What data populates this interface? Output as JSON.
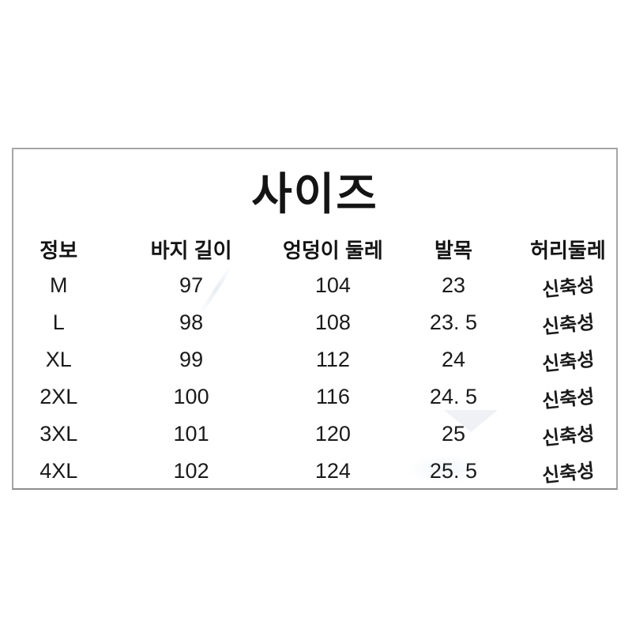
{
  "title": "사이즈",
  "table": {
    "headers": [
      "정보",
      "바지 길이",
      "엉덩이 둘레",
      "발목",
      "허리둘레"
    ],
    "rows": [
      [
        "M",
        "97",
        "104",
        "23",
        "신축성"
      ],
      [
        "L",
        "98",
        "108",
        "23. 5",
        "신축성"
      ],
      [
        "XL",
        "99",
        "112",
        "24",
        "신축성"
      ],
      [
        "2XL",
        "100",
        "116",
        "24. 5",
        "신축성"
      ],
      [
        "3XL",
        "101",
        "120",
        "25",
        "신축성"
      ],
      [
        "4XL",
        "102",
        "124",
        "25. 5",
        "신축성"
      ]
    ]
  },
  "colors": {
    "background": "#ffffff",
    "text": "#1a1a1a",
    "panel_border": "#a6a6a6"
  }
}
